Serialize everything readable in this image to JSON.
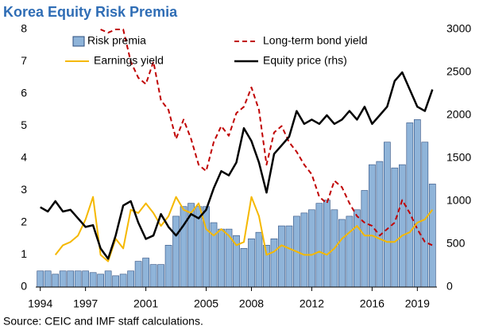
{
  "chart_data": {
    "type": "combo",
    "title": "Korea Equity Risk Premia",
    "source": "Source: CEIC and IMF staff calculations.",
    "x": [
      1994,
      1994.5,
      1995,
      1995.5,
      1996,
      1996.5,
      1997,
      1997.5,
      1998,
      1998.5,
      1999,
      1999.5,
      2000,
      2000.5,
      2001,
      2001.5,
      2002,
      2002.5,
      2003,
      2003.5,
      2004,
      2004.5,
      2005,
      2005.5,
      2006,
      2006.5,
      2007,
      2007.5,
      2008,
      2008.5,
      2009,
      2009.5,
      2010,
      2010.5,
      2011,
      2011.5,
      2012,
      2012.5,
      2013,
      2013.5,
      2014,
      2014.5,
      2015,
      2015.5,
      2016,
      2016.5,
      2017,
      2017.5,
      2018,
      2018.5,
      2019,
      2019.5,
      2020
    ],
    "series": [
      {
        "name": "Risk premia",
        "type": "bar",
        "color": "#8fb4d9",
        "values": [
          0.5,
          0.5,
          0.4,
          0.5,
          0.5,
          0.5,
          0.5,
          0.45,
          0.4,
          0.5,
          0.35,
          0.4,
          0.5,
          0.8,
          0.9,
          0.7,
          0.7,
          1.3,
          2.2,
          2.5,
          2.6,
          2.5,
          2.5,
          2.0,
          1.8,
          1.8,
          1.6,
          1.2,
          1.5,
          1.7,
          1.3,
          1.5,
          1.9,
          1.9,
          2.2,
          2.3,
          2.4,
          2.6,
          2.7,
          2.4,
          2.1,
          2.2,
          2.4,
          3.0,
          3.8,
          3.9,
          4.5,
          3.7,
          3.8,
          5.1,
          5.2,
          4.5,
          3.2
        ]
      },
      {
        "name": "Long-term bond yield",
        "type": "line",
        "dashed": true,
        "color": "#c00000",
        "values": [
          null,
          null,
          null,
          null,
          null,
          null,
          null,
          null,
          8.0,
          7.9,
          8.0,
          8.0,
          7.0,
          6.5,
          6.3,
          7.0,
          5.8,
          5.5,
          4.6,
          5.2,
          4.6,
          3.8,
          3.6,
          4.5,
          5.0,
          4.7,
          5.4,
          5.6,
          6.2,
          5.5,
          3.8,
          4.8,
          5.0,
          4.5,
          4.2,
          3.8,
          3.5,
          2.8,
          2.6,
          3.3,
          3.1,
          2.6,
          2.2,
          2.0,
          1.9,
          1.6,
          1.8,
          2.0,
          2.7,
          2.3,
          1.8,
          1.4,
          1.3
        ]
      },
      {
        "name": "Earnings yield",
        "type": "line",
        "color": "#f5b800",
        "values": [
          null,
          null,
          1.0,
          1.3,
          1.4,
          1.6,
          2.1,
          2.8,
          1.0,
          0.8,
          1.5,
          1.2,
          2.4,
          2.3,
          2.6,
          2.3,
          1.9,
          2.2,
          2.8,
          2.4,
          2.3,
          2.6,
          1.8,
          1.6,
          1.8,
          1.6,
          1.3,
          1.4,
          2.8,
          2.2,
          1.0,
          1.1,
          1.3,
          1.2,
          1.1,
          1.0,
          1.0,
          1.1,
          1.0,
          1.2,
          1.5,
          1.7,
          1.9,
          1.6,
          1.6,
          1.5,
          1.4,
          1.4,
          1.6,
          1.7,
          2.0,
          2.1,
          2.4
        ]
      },
      {
        "name": "Equity price (rhs)",
        "type": "line",
        "axis": "y2",
        "color": "#000000",
        "values": [
          930,
          880,
          1000,
          880,
          900,
          800,
          700,
          720,
          450,
          330,
          600,
          950,
          1000,
          750,
          560,
          600,
          850,
          700,
          600,
          720,
          850,
          800,
          900,
          1150,
          1350,
          1300,
          1450,
          1850,
          1700,
          1450,
          1100,
          1550,
          1650,
          1750,
          2050,
          1900,
          1950,
          1900,
          2000,
          1900,
          1950,
          2050,
          1950,
          2100,
          1900,
          2000,
          2100,
          2400,
          2500,
          2300,
          2100,
          2050,
          2300
        ]
      }
    ],
    "xlim": [
      1993.7,
      2020.3
    ],
    "xticks": [
      1994,
      1997,
      2001,
      2005,
      2008,
      2012,
      2016,
      2019
    ],
    "ylim": [
      0,
      8
    ],
    "yticks": [
      0,
      1,
      2,
      3,
      4,
      5,
      6,
      7,
      8
    ],
    "y2lim": [
      0,
      3000
    ],
    "y2ticks": [
      0,
      500,
      1000,
      1500,
      2000,
      2500,
      3000
    ]
  }
}
